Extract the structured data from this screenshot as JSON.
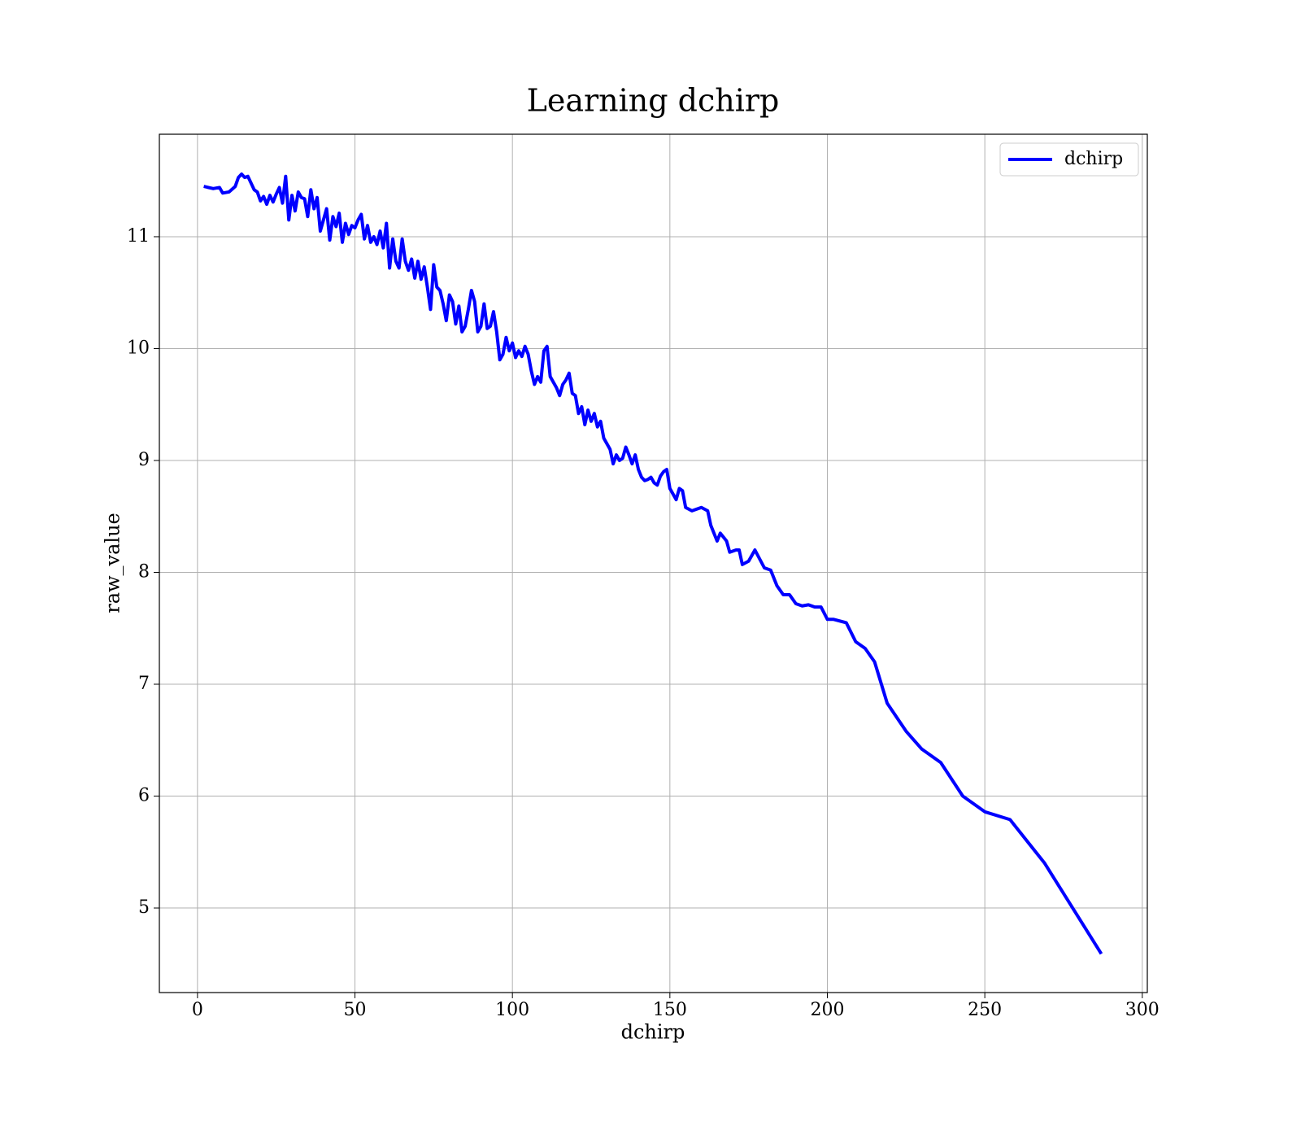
{
  "chart_data": {
    "type": "line",
    "title": "Learning dchirp",
    "xlabel": "dchirp",
    "ylabel": "raw_value",
    "x": [
      2,
      5,
      7,
      8,
      10,
      12,
      13,
      14,
      15,
      16,
      17,
      18,
      19,
      20,
      21,
      22,
      23,
      24,
      25,
      26,
      27,
      28,
      29,
      30,
      31,
      32,
      33,
      34,
      35,
      36,
      37,
      38,
      39,
      40,
      41,
      42,
      43,
      44,
      45,
      46,
      47,
      48,
      49,
      50,
      51,
      52,
      53,
      54,
      55,
      56,
      57,
      58,
      59,
      60,
      61,
      62,
      63,
      64,
      65,
      66,
      67,
      68,
      69,
      70,
      71,
      72,
      73,
      74,
      75,
      76,
      77,
      78,
      79,
      80,
      81,
      82,
      83,
      84,
      85,
      86,
      87,
      88,
      89,
      90,
      91,
      92,
      93,
      94,
      95,
      96,
      97,
      98,
      99,
      100,
      101,
      102,
      103,
      104,
      105,
      106,
      107,
      108,
      109,
      110,
      111,
      112,
      113,
      114,
      115,
      116,
      117,
      118,
      119,
      120,
      121,
      122,
      123,
      124,
      125,
      126,
      127,
      128,
      129,
      130,
      131,
      132,
      133,
      134,
      135,
      136,
      137,
      138,
      139,
      140,
      141,
      142,
      143,
      144,
      145,
      146,
      147,
      148,
      149,
      150,
      152,
      153,
      154,
      155,
      157,
      160,
      162,
      163,
      165,
      166,
      168,
      169,
      171,
      172,
      173,
      175,
      177,
      180,
      182,
      184,
      186,
      188,
      190,
      192,
      194,
      196,
      198,
      200,
      202,
      206,
      209,
      212,
      215,
      219,
      225,
      230,
      236,
      243,
      250,
      258,
      269,
      287
    ],
    "series": [
      {
        "name": "dchirp",
        "color": "#0000ff",
        "values": [
          11.45,
          11.43,
          11.44,
          11.39,
          11.4,
          11.45,
          11.53,
          11.56,
          11.53,
          11.54,
          11.48,
          11.42,
          11.4,
          11.32,
          11.36,
          11.29,
          11.37,
          11.31,
          11.38,
          11.44,
          11.3,
          11.54,
          11.15,
          11.37,
          11.23,
          11.4,
          11.35,
          11.34,
          11.18,
          11.42,
          11.25,
          11.35,
          11.05,
          11.15,
          11.25,
          10.97,
          11.18,
          11.09,
          11.21,
          10.95,
          11.12,
          11.02,
          11.1,
          11.08,
          11.15,
          11.2,
          10.98,
          11.1,
          10.95,
          11.0,
          10.93,
          11.05,
          10.9,
          11.12,
          10.72,
          10.98,
          10.78,
          10.72,
          10.98,
          10.78,
          10.7,
          10.8,
          10.63,
          10.78,
          10.62,
          10.73,
          10.55,
          10.35,
          10.75,
          10.55,
          10.52,
          10.4,
          10.25,
          10.48,
          10.42,
          10.22,
          10.38,
          10.15,
          10.2,
          10.35,
          10.52,
          10.42,
          10.15,
          10.2,
          10.4,
          10.18,
          10.2,
          10.33,
          10.15,
          9.9,
          9.95,
          10.1,
          9.98,
          10.05,
          9.92,
          9.98,
          9.93,
          10.02,
          9.95,
          9.8,
          9.68,
          9.75,
          9.7,
          9.98,
          10.02,
          9.75,
          9.7,
          9.65,
          9.58,
          9.68,
          9.72,
          9.78,
          9.6,
          9.58,
          9.42,
          9.48,
          9.32,
          9.45,
          9.35,
          9.42,
          9.3,
          9.35,
          9.2,
          9.15,
          9.1,
          8.97,
          9.05,
          9.0,
          9.02,
          9.12,
          9.05,
          8.97,
          9.05,
          8.92,
          8.85,
          8.82,
          8.83,
          8.85,
          8.8,
          8.78,
          8.86,
          8.9,
          8.92,
          8.75,
          8.65,
          8.75,
          8.73,
          8.58,
          8.55,
          8.58,
          8.55,
          8.42,
          8.28,
          8.35,
          8.28,
          8.18,
          8.2,
          8.2,
          8.07,
          8.1,
          8.2,
          8.04,
          8.02,
          7.88,
          7.8,
          7.8,
          7.72,
          7.7,
          7.71,
          7.69,
          7.69,
          7.58,
          7.58,
          7.55,
          7.38,
          7.32,
          7.2,
          6.83,
          6.58,
          6.42,
          6.3,
          6.0,
          5.86,
          5.79,
          5.4,
          4.59
        ]
      }
    ],
    "xlim": [
      -12.1,
      301.6
    ],
    "ylim": [
      4.244,
      11.916
    ],
    "xticks": [
      0,
      50,
      100,
      150,
      200,
      250,
      300
    ],
    "yticks": [
      5,
      6,
      7,
      8,
      9,
      10,
      11
    ],
    "grid": true,
    "legend": "upper right"
  }
}
